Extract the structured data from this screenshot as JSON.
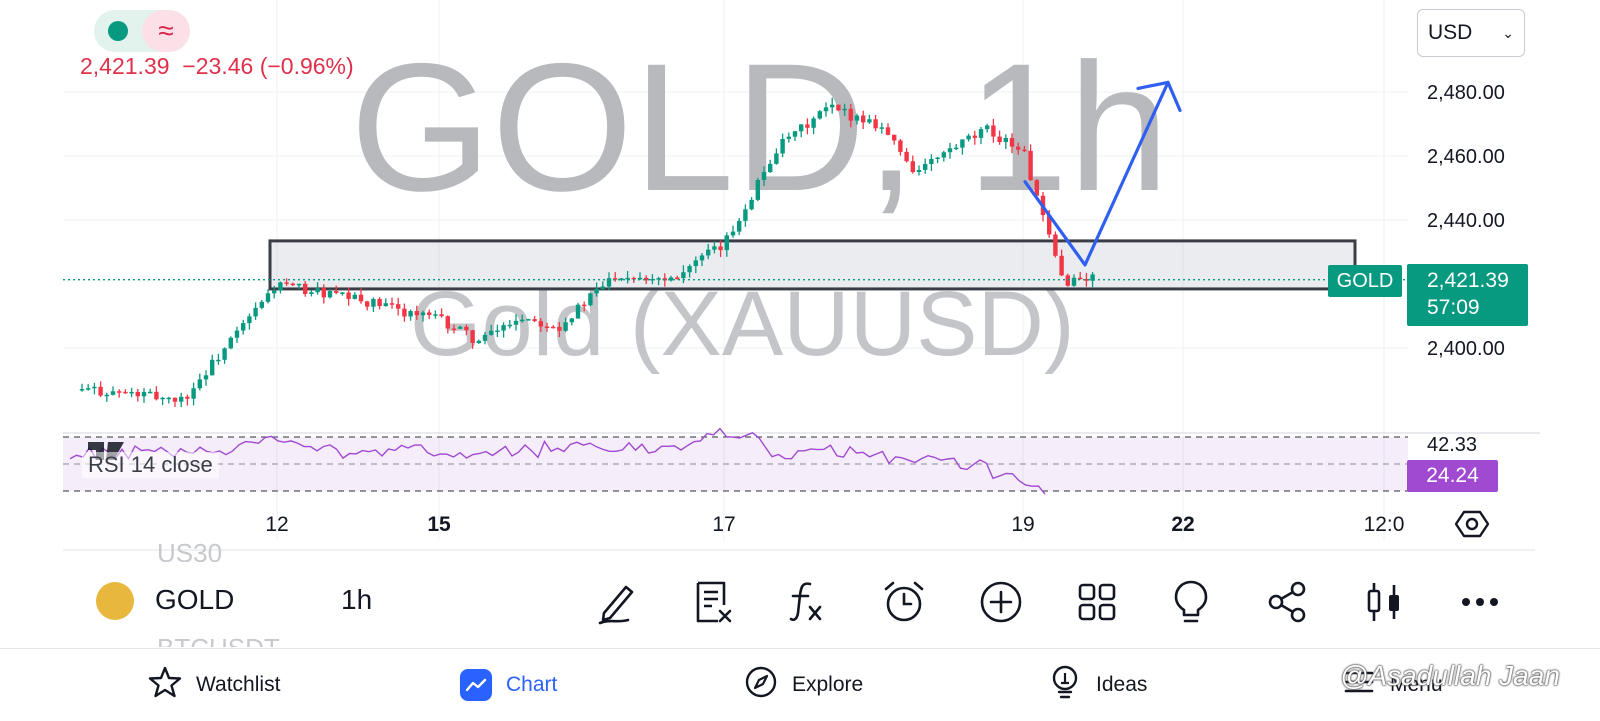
{
  "header": {
    "symbol_watermark": "GOLD, 1h",
    "description_watermark": "Gold (XAUUSD)",
    "last_price": "2,421.39",
    "change": "−23.46",
    "change_percent": "(−0.96%)",
    "currency": "USD"
  },
  "price_axis": {
    "labels": [
      "2,480.00",
      "2,460.00",
      "2,440.00",
      "2,400.00"
    ],
    "symbol_tag": "GOLD",
    "price_tag": "2,421.39",
    "countdown": "57:09"
  },
  "time_axis": {
    "labels": [
      "12",
      "15",
      "17",
      "19",
      "22",
      "12:0"
    ],
    "bold": [
      "15",
      "22"
    ]
  },
  "rsi": {
    "label": "RSI 14 close",
    "upper_value": "42.33",
    "current_value": "24.24"
  },
  "toolbar": {
    "symbol": "GOLD",
    "interval": "1h",
    "ghost_above": "US30",
    "ghost_below": "BTCUSDT",
    "tools": [
      "draw",
      "clear-drawings",
      "indicators",
      "alert",
      "add",
      "layouts",
      "ideas",
      "share",
      "chart-type",
      "more"
    ]
  },
  "bottom_nav": {
    "items": [
      {
        "label": "Watchlist",
        "icon": "star-icon"
      },
      {
        "label": "Chart",
        "icon": "chart-icon",
        "active": true
      },
      {
        "label": "Explore",
        "icon": "compass-icon"
      },
      {
        "label": "Ideas",
        "icon": "lightbulb-icon"
      },
      {
        "label": "Menu",
        "icon": "menu-icon"
      }
    ]
  },
  "credit": "@Asadullah Jaan",
  "colors": {
    "up": "#089981",
    "down": "#f23645",
    "rsi": "#a04ad1",
    "arrow": "#2f5ff0",
    "accent": "#2962ff"
  },
  "chart_data": {
    "type": "candlestick",
    "title": "GOLD, 1h",
    "subtitle": "Gold (XAUUSD)",
    "x_ticks": [
      "12",
      "15",
      "17",
      "19",
      "22",
      "12:0"
    ],
    "y_ticks": [
      2400,
      2440,
      2460,
      2480
    ],
    "ylim": [
      2376,
      2490
    ],
    "last_price": 2421.39,
    "zone": {
      "from": 2418.5,
      "to": 2433.5
    },
    "trend_path": [
      {
        "x": "19",
        "y": 2452
      },
      {
        "x": "19",
        "y": 2426
      },
      {
        "x": "22",
        "y": 2483
      }
    ],
    "series": [
      {
        "name": "GOLD",
        "price_path": [
          {
            "x": "11",
            "y": 2387
          },
          {
            "x": "11",
            "y": 2384
          },
          {
            "x": "12",
            "y": 2420
          },
          {
            "x": "12",
            "y": 2415
          },
          {
            "x": "15",
            "y": 2409
          },
          {
            "x": "15",
            "y": 2402
          },
          {
            "x": "15",
            "y": 2410
          },
          {
            "x": "16",
            "y": 2407
          },
          {
            "x": "16",
            "y": 2423
          },
          {
            "x": "16",
            "y": 2422
          },
          {
            "x": "17",
            "y": 2432
          },
          {
            "x": "17",
            "y": 2462
          },
          {
            "x": "17",
            "y": 2475
          },
          {
            "x": "18",
            "y": 2470
          },
          {
            "x": "18",
            "y": 2455
          },
          {
            "x": "18",
            "y": 2462
          },
          {
            "x": "18",
            "y": 2468
          },
          {
            "x": "19",
            "y": 2462
          },
          {
            "x": "19",
            "y": 2440
          },
          {
            "x": "19",
            "y": 2421
          }
        ]
      },
      {
        "name": "RSI 14 close",
        "last": 24.24,
        "upper_band": 42.33
      }
    ]
  }
}
